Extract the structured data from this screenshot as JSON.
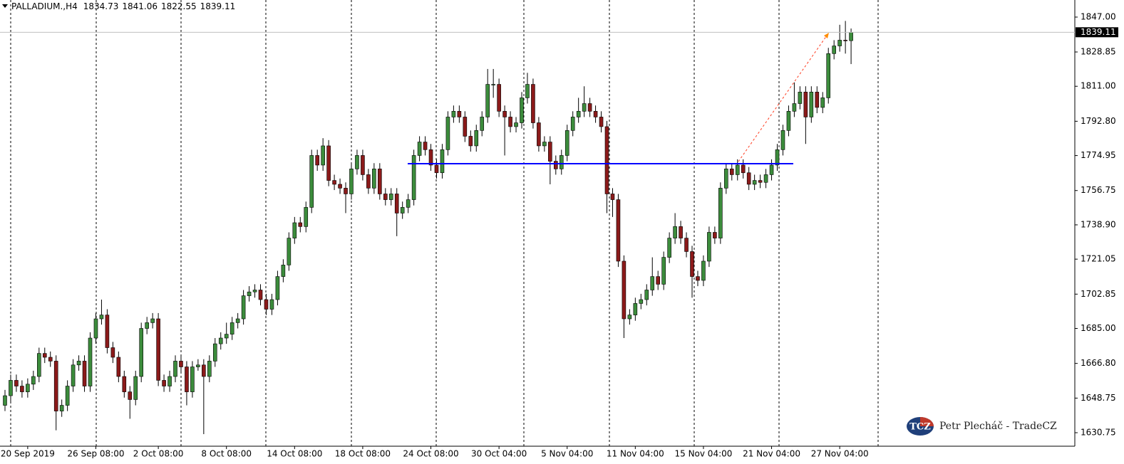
{
  "chart_data": {
    "type": "candlestick",
    "symbol": "PALLADIUM.,H4",
    "up_color": "#3c8c3c",
    "down_color": "#8b1a1a",
    "wick_color": "#000000",
    "ylim": [
      1623.72,
      1855.89
    ],
    "yticks": [
      {
        "value": 1847,
        "label": "1847.00"
      },
      1828.85,
      {
        "value": 1811,
        "label": "1811.00"
      },
      {
        "value": 1792.8,
        "label": "1792.80"
      },
      1774.95,
      1756.75,
      {
        "value": 1738.9,
        "label": "1738.90"
      },
      1721.05,
      1702.85,
      {
        "value": 1685,
        "label": "1685.00"
      },
      {
        "value": 1666.8,
        "label": "1666.80"
      },
      1648.75,
      1630.75
    ],
    "categories": [
      null,
      null,
      null,
      null,
      "20 Sep 2019",
      null,
      null,
      null,
      null,
      null,
      null,
      null,
      null,
      null,
      null,
      null,
      "26 Sep 08:00",
      null,
      null,
      null,
      null,
      null,
      null,
      null,
      null,
      null,
      null,
      "2 Oct 08:00",
      null,
      null,
      null,
      null,
      null,
      null,
      null,
      null,
      null,
      null,
      null,
      "8 Oct 08:00",
      null,
      null,
      null,
      null,
      null,
      null,
      null,
      null,
      null,
      null,
      null,
      "14 Oct 08:00",
      null,
      null,
      null,
      null,
      null,
      null,
      null,
      null,
      null,
      null,
      null,
      "18 Oct 08:00",
      null,
      null,
      null,
      null,
      null,
      null,
      null,
      null,
      null,
      null,
      null,
      "24 Oct 08:00",
      null,
      null,
      null,
      null,
      null,
      null,
      null,
      null,
      null,
      null,
      null,
      "30 Oct 04:00",
      null,
      null,
      null,
      null,
      null,
      null,
      null,
      null,
      null,
      null,
      null,
      "5 Nov 04:00",
      null,
      null,
      null,
      null,
      null,
      null,
      null,
      null,
      null,
      null,
      null,
      "11 Nov 04:00",
      null,
      null,
      null,
      null,
      null,
      null,
      null,
      null,
      null,
      null,
      null,
      "15 Nov 04:00",
      null,
      null,
      null,
      null,
      null,
      null,
      null,
      null,
      null,
      null,
      null,
      "21 Nov 04:00",
      null,
      null,
      null,
      null,
      null,
      null,
      null,
      null,
      null,
      null,
      null,
      "27 Nov 04:00",
      null,
      null
    ],
    "open": [
      1645,
      1650,
      1658,
      1655,
      1652,
      1656,
      1660,
      1672,
      1670,
      1668,
      1642,
      1645,
      1655,
      1666,
      1668,
      1655,
      1680,
      1690,
      1692,
      1675,
      1670,
      1660,
      1652,
      1648,
      1660,
      1685,
      1688,
      1690,
      1658,
      1655,
      1660,
      1668,
      1665,
      1652,
      1665,
      1666,
      1660,
      1668,
      1677,
      1680,
      1682,
      1688,
      1690,
      1702,
      1704,
      1705,
      1700,
      1695,
      1700,
      1712,
      1718,
      1732,
      1740,
      1738,
      1748,
      1775,
      1770,
      1780,
      1762,
      1760,
      1758,
      1755,
      1768,
      1775,
      1765,
      1758,
      1768,
      1755,
      1752,
      1755,
      1745,
      1748,
      1752,
      1775,
      1782,
      1778,
      1770,
      1766,
      1778,
      1795,
      1798,
      1795,
      1785,
      1780,
      1788,
      1795,
      1812,
      1812,
      1798,
      1795,
      1790,
      1792,
      1805,
      1812,
      1792,
      1780,
      1782,
      1772,
      1768,
      1775,
      1788,
      1795,
      1798,
      1802,
      1798,
      1795,
      1790,
      1755,
      1752,
      1720,
      1690,
      1692,
      1698,
      1700,
      1705,
      1712,
      1708,
      1722,
      1732,
      1738,
      1732,
      1725,
      1712,
      1710,
      1720,
      1735,
      1732,
      1758,
      1768,
      1765,
      1770,
      1766,
      1760,
      1762,
      1761,
      1765,
      1770,
      1778,
      1788,
      1798,
      1802,
      1808,
      1795,
      1808,
      1800,
      1805,
      1828,
      1832,
      1835,
      1834.73
    ],
    "high": [
      1653,
      1661,
      1661,
      1658,
      1659,
      1663,
      1675,
      1675,
      1673,
      1671,
      1648,
      1658,
      1669,
      1671,
      1671,
      1683,
      1693,
      1700,
      1695,
      1678,
      1673,
      1663,
      1655,
      1663,
      1688,
      1691,
      1693,
      1693,
      1661,
      1663,
      1671,
      1671,
      1668,
      1668,
      1669,
      1669,
      1671,
      1680,
      1683,
      1688,
      1691,
      1693,
      1705,
      1707,
      1708,
      1708,
      1703,
      1703,
      1715,
      1721,
      1735,
      1743,
      1743,
      1751,
      1778,
      1778,
      1784,
      1783,
      1765,
      1763,
      1761,
      1771,
      1778,
      1778,
      1768,
      1771,
      1771,
      1758,
      1758,
      1758,
      1751,
      1755,
      1778,
      1785,
      1785,
      1781,
      1773,
      1781,
      1798,
      1801,
      1801,
      1798,
      1788,
      1791,
      1798,
      1820,
      1820,
      1815,
      1801,
      1798,
      1795,
      1808,
      1818,
      1815,
      1795,
      1785,
      1785,
      1775,
      1778,
      1791,
      1798,
      1805,
      1811,
      1805,
      1801,
      1798,
      1793,
      1758,
      1755,
      1723,
      1695,
      1701,
      1703,
      1708,
      1722,
      1715,
      1725,
      1735,
      1745,
      1741,
      1735,
      1728,
      1715,
      1723,
      1738,
      1738,
      1761,
      1771,
      1771,
      1773,
      1773,
      1769,
      1765,
      1765,
      1768,
      1773,
      1781,
      1791,
      1801,
      1813,
      1811,
      1811,
      1811,
      1811,
      1808,
      1831,
      1835,
      1843,
      1845,
      1841.06
    ],
    "low": [
      1642,
      1647,
      1652,
      1649,
      1649,
      1653,
      1657,
      1667,
      1665,
      1632,
      1639,
      1642,
      1652,
      1663,
      1652,
      1652,
      1677,
      1687,
      1672,
      1667,
      1657,
      1649,
      1638,
      1645,
      1657,
      1682,
      1685,
      1655,
      1652,
      1652,
      1657,
      1662,
      1645,
      1649,
      1663,
      1630,
      1657,
      1665,
      1674,
      1677,
      1679,
      1685,
      1687,
      1699,
      1701,
      1697,
      1692,
      1692,
      1697,
      1709,
      1715,
      1729,
      1735,
      1735,
      1745,
      1767,
      1767,
      1759,
      1757,
      1755,
      1745,
      1752,
      1765,
      1762,
      1755,
      1755,
      1752,
      1749,
      1749,
      1733,
      1742,
      1745,
      1749,
      1772,
      1775,
      1767,
      1763,
      1763,
      1775,
      1792,
      1792,
      1782,
      1777,
      1777,
      1785,
      1792,
      1805,
      1795,
      1775,
      1787,
      1787,
      1789,
      1802,
      1789,
      1777,
      1777,
      1760,
      1765,
      1765,
      1772,
      1785,
      1792,
      1795,
      1795,
      1792,
      1787,
      1745,
      1743,
      1717,
      1680,
      1687,
      1689,
      1695,
      1697,
      1702,
      1705,
      1705,
      1719,
      1729,
      1729,
      1722,
      1701,
      1707,
      1707,
      1717,
      1729,
      1729,
      1755,
      1762,
      1762,
      1763,
      1757,
      1757,
      1758,
      1758,
      1762,
      1767,
      1775,
      1785,
      1795,
      1799,
      1781,
      1792,
      1797,
      1797,
      1802,
      1825,
      1829,
      1828,
      1822.55
    ],
    "close": [
      1650,
      1658,
      1655,
      1652,
      1656,
      1660,
      1672,
      1670,
      1668,
      1642,
      1645,
      1655,
      1666,
      1668,
      1655,
      1680,
      1690,
      1692,
      1675,
      1670,
      1660,
      1652,
      1648,
      1660,
      1685,
      1688,
      1690,
      1658,
      1655,
      1660,
      1668,
      1665,
      1652,
      1665,
      1666,
      1660,
      1668,
      1677,
      1680,
      1682,
      1688,
      1690,
      1702,
      1704,
      1705,
      1700,
      1695,
      1700,
      1712,
      1718,
      1732,
      1740,
      1738,
      1748,
      1775,
      1770,
      1780,
      1762,
      1760,
      1758,
      1755,
      1768,
      1775,
      1765,
      1758,
      1768,
      1755,
      1752,
      1755,
      1745,
      1748,
      1752,
      1775,
      1782,
      1778,
      1770,
      1766,
      1778,
      1795,
      1798,
      1795,
      1785,
      1780,
      1788,
      1795,
      1812,
      1812,
      1798,
      1795,
      1790,
      1792,
      1805,
      1812,
      1792,
      1780,
      1782,
      1772,
      1768,
      1775,
      1788,
      1795,
      1798,
      1802,
      1798,
      1795,
      1790,
      1755,
      1752,
      1720,
      1690,
      1692,
      1698,
      1700,
      1705,
      1712,
      1708,
      1722,
      1732,
      1738,
      1732,
      1725,
      1712,
      1710,
      1720,
      1735,
      1732,
      1758,
      1768,
      1765,
      1770,
      1766,
      1760,
      1762,
      1761,
      1765,
      1770,
      1778,
      1788,
      1798,
      1802,
      1808,
      1795,
      1808,
      1800,
      1805,
      1828,
      1832,
      1835,
      1834.73,
      1839.11
    ],
    "watermark": {
      "logo": "TCZ",
      "text": "Petr Plecháč - TradeCZ"
    }
  }
}
